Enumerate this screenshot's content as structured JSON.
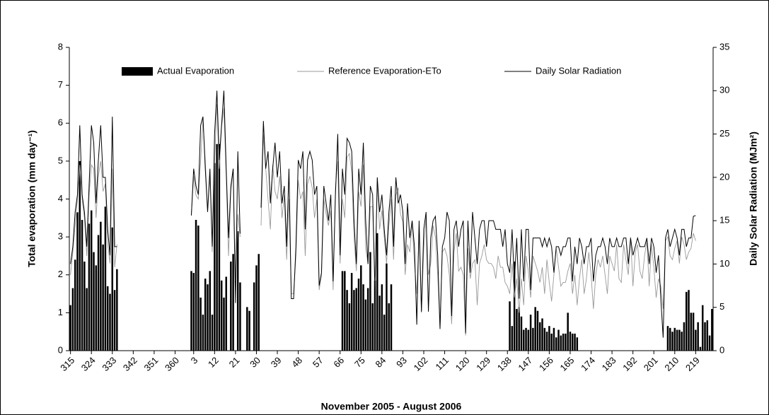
{
  "chart_data": {
    "type": "bar",
    "x_label": "November 2005 - August 2006",
    "y_label": "Total evaporation (mm day⁻¹)",
    "y2_label": "Daily Solar Radiation (MJm²)",
    "legend": "top",
    "categories": [
      "315",
      null,
      null,
      null,
      null,
      null,
      null,
      null,
      null,
      "324",
      null,
      null,
      null,
      null,
      null,
      null,
      null,
      null,
      "333",
      null,
      null,
      null,
      null,
      null,
      null,
      null,
      null,
      "342",
      null,
      null,
      null,
      null,
      null,
      null,
      null,
      null,
      "351",
      null,
      null,
      null,
      null,
      null,
      null,
      null,
      null,
      "360",
      null,
      null,
      null,
      null,
      null,
      null,
      null,
      "3",
      null,
      null,
      null,
      null,
      null,
      null,
      null,
      null,
      "12",
      null,
      null,
      null,
      null,
      null,
      null,
      null,
      null,
      "21",
      null,
      null,
      null,
      null,
      null,
      null,
      null,
      null,
      "30",
      null,
      null,
      null,
      null,
      null,
      null,
      null,
      null,
      "39",
      null,
      null,
      null,
      null,
      null,
      null,
      null,
      null,
      "48",
      null,
      null,
      null,
      null,
      null,
      null,
      null,
      null,
      "57",
      null,
      null,
      null,
      null,
      null,
      null,
      null,
      null,
      "66",
      null,
      null,
      null,
      null,
      null,
      null,
      null,
      null,
      "75",
      null,
      null,
      null,
      null,
      null,
      null,
      null,
      null,
      "84",
      null,
      null,
      null,
      null,
      null,
      null,
      null,
      null,
      "93",
      null,
      null,
      null,
      null,
      null,
      null,
      null,
      null,
      "102",
      null,
      null,
      null,
      null,
      null,
      null,
      null,
      null,
      "111",
      null,
      null,
      null,
      null,
      null,
      null,
      null,
      null,
      "120",
      null,
      null,
      null,
      null,
      null,
      null,
      null,
      null,
      "129",
      null,
      null,
      null,
      null,
      null,
      null,
      null,
      null,
      "138",
      null,
      null,
      null,
      null,
      null,
      null,
      null,
      null,
      "147",
      null,
      null,
      null,
      null,
      null,
      null,
      null,
      null,
      "156",
      null,
      null,
      null,
      null,
      null,
      null,
      null,
      null,
      "165",
      null,
      null,
      null,
      null,
      null,
      null,
      null,
      null,
      "174",
      null,
      null,
      null,
      null,
      null,
      null,
      null,
      null,
      "183",
      null,
      null,
      null,
      null,
      null,
      null,
      null,
      null,
      "192",
      null,
      null,
      null,
      null,
      null,
      null,
      null,
      null,
      "201",
      null,
      null,
      null,
      null,
      null,
      null,
      null,
      null,
      "210",
      null,
      null,
      null,
      null,
      null,
      null,
      null,
      null,
      "219",
      null,
      null,
      null,
      null,
      null,
      null,
      null
    ],
    "series": [
      {
        "name": "Actual Evaporation",
        "type": "bar",
        "color": "#000000",
        "values": [
          1.2,
          1.65,
          2.4,
          3.65,
          5.0,
          3.45,
          2.35,
          1.65,
          3.35,
          3.7,
          2.6,
          2.25,
          3.05,
          3.4,
          2.8,
          3.8,
          1.7,
          1.5,
          3.25,
          1.6,
          2.15,
          null,
          null,
          null,
          null,
          null,
          null,
          null,
          null,
          null,
          null,
          null,
          null,
          null,
          null,
          null,
          null,
          null,
          null,
          null,
          null,
          null,
          null,
          null,
          null,
          null,
          null,
          null,
          null,
          null,
          null,
          null,
          2.1,
          2.05,
          3.45,
          3.3,
          1.4,
          0.95,
          1.9,
          1.75,
          2.1,
          0.95,
          4.95,
          5.45,
          5.45,
          1.85,
          1.4,
          1.95,
          null,
          2.35,
          2.55,
          null,
          3.15,
          1.8,
          null,
          null,
          1.15,
          1.05,
          null,
          1.8,
          2.25,
          2.55,
          null,
          null,
          null,
          null,
          null,
          null,
          null,
          null,
          null,
          null,
          null,
          null,
          null,
          null,
          null,
          null,
          null,
          null,
          null,
          null,
          null,
          null,
          null,
          null,
          null,
          null,
          null,
          null,
          null,
          null,
          null,
          null,
          null,
          null,
          null,
          2.1,
          2.1,
          1.6,
          1.25,
          2.05,
          1.6,
          1.65,
          1.9,
          2.25,
          1.75,
          1.35,
          1.65,
          2.6,
          1.25,
          1.85,
          3.1,
          1.45,
          1.75,
          0.95,
          2.3,
          1.25,
          1.75,
          null,
          null,
          null,
          null,
          null,
          null,
          null,
          null,
          null,
          null,
          null,
          null,
          null,
          null,
          null,
          null,
          null,
          null,
          null,
          null,
          null,
          null,
          null,
          null,
          null,
          null,
          null,
          null,
          null,
          null,
          null,
          null,
          null,
          null,
          null,
          null,
          null,
          null,
          null,
          null,
          null,
          null,
          null,
          null,
          null,
          null,
          null,
          null,
          null,
          null,
          1.3,
          0.65,
          2.35,
          1.1,
          1.15,
          0.9,
          0.55,
          0.6,
          0.55,
          0.95,
          0.6,
          1.15,
          1.05,
          0.75,
          0.85,
          0.6,
          0.5,
          0.65,
          0.45,
          0.6,
          0.35,
          0.55,
          0.4,
          0.45,
          0.45,
          1.0,
          0.5,
          0.45,
          0.45,
          0.35,
          null,
          null,
          null,
          null,
          null,
          null,
          null,
          null,
          null,
          null,
          null,
          null,
          null,
          null,
          null,
          null,
          null,
          null,
          null,
          null,
          null,
          null,
          null,
          null,
          null,
          null,
          null,
          null,
          null,
          null,
          null,
          null,
          null,
          null,
          null,
          null,
          null,
          null,
          0.65,
          0.6,
          0.5,
          0.6,
          0.55,
          0.55,
          0.5,
          0.75,
          1.55,
          1.6,
          1.0,
          1.0,
          0.55,
          0.75,
          0.1,
          1.2,
          0.75,
          0.8,
          0.4,
          1.1
        ]
      },
      {
        "name": "Reference Evaporation-ETo",
        "type": "line",
        "color": "#999999",
        "values": [
          2.0,
          2.6,
          3.3,
          4.0,
          4.9,
          4.0,
          3.5,
          2.5,
          4.1,
          4.9,
          4.8,
          3.5,
          4.6,
          5.0,
          4.2,
          4.4,
          2.8,
          2.3,
          4.8,
          2.2,
          2.8,
          null,
          null,
          null,
          null,
          null,
          null,
          null,
          null,
          null,
          null,
          null,
          null,
          null,
          null,
          null,
          null,
          null,
          null,
          null,
          null,
          null,
          null,
          null,
          null,
          null,
          null,
          null,
          null,
          null,
          null,
          null,
          3.6,
          4.6,
          4.1,
          4.0,
          5.0,
          6.1,
          5.0,
          3.7,
          4.6,
          2.6,
          5.0,
          6.5,
          4.8,
          5.9,
          6.4,
          4.6,
          2.5,
          4.2,
          4.8,
          1.9,
          3.6,
          3.0,
          null,
          null,
          null,
          null,
          null,
          null,
          null,
          null,
          3.3,
          5.7,
          4.8,
          4.0,
          3.2,
          4.9,
          4.2,
          4.0,
          4.6,
          3.5,
          4.1,
          2.4,
          4.0,
          1.5,
          1.5,
          2.5,
          4.5,
          4.0,
          4.2,
          2.5,
          4.4,
          4.6,
          4.3,
          3.5,
          4.0,
          1.6,
          2.0,
          4.0,
          3.6,
          3.3,
          3.7,
          1.6,
          4.3,
          5.0,
          2.3,
          4.0,
          3.5,
          5.1,
          5.2,
          4.7,
          3.0,
          2.1,
          4.2,
          3.8,
          4.9,
          2.7,
          2.3,
          3.8,
          3.8,
          1.6,
          4.5,
          3.2,
          3.7,
          3.0,
          2.3,
          3.3,
          4.0,
          2.4,
          4.1,
          4.3,
          3.6,
          3.4,
          2.0,
          2.8,
          2.6,
          3.4,
          2.3,
          1.5,
          3.1,
          1.0,
          2.7,
          3.5,
          2.0,
          2.3,
          3.3,
          3.0,
          2.0,
          0.6,
          2.6,
          2.7,
          2.5,
          2.0,
          0.7,
          2.6,
          3.1,
          2.1,
          2.2,
          2.0,
          0.4,
          2.7,
          1.9,
          2.3,
          2.4,
          1.2,
          2.3,
          2.5,
          2.8,
          2.4,
          2.3,
          2.3,
          2.2,
          1.9,
          2.5,
          2.2,
          2.2,
          1.8,
          1.7,
          1.5,
          2.3,
          1.4,
          1.9,
          1.0,
          1.9,
          1.2,
          2.5,
          2.1,
          1.4,
          2.5,
          2.3,
          2.1,
          1.8,
          2.2,
          1.5,
          2.4,
          1.8,
          1.3,
          2.0,
          2.7,
          2.2,
          1.7,
          1.8,
          1.8,
          2.1,
          2.3,
          1.5,
          2.0,
          1.2,
          1.9,
          2.4,
          1.5,
          1.9,
          2.6,
          2.0,
          1.1,
          2.0,
          2.4,
          2.2,
          2.5,
          2.0,
          1.5,
          2.5,
          2.3,
          2.1,
          2.8,
          1.9,
          1.8,
          2.8,
          2.4,
          2.0,
          3.0,
          1.7,
          2.6,
          2.8,
          2.1,
          1.9,
          2.5,
          2.9,
          1.7,
          2.8,
          2.2,
          1.4,
          1.9,
          1.7,
          1.1,
          2.9,
          3.0,
          2.5,
          2.4,
          2.7,
          2.9,
          2.3,
          3.0,
          2.8,
          2.4,
          2.6,
          2.7,
          3.1,
          2.9,
          null,
          null,
          null,
          null,
          null,
          null,
          null
        ]
      },
      {
        "name": "Daily Solar Radiation",
        "type": "line",
        "axis": "y2",
        "color": "#000000",
        "values": [
          10,
          12,
          16,
          18,
          26,
          18,
          16,
          12,
          19,
          26,
          24,
          17,
          22,
          26,
          20,
          20,
          14,
          11,
          27,
          12,
          12,
          null,
          null,
          null,
          null,
          null,
          null,
          null,
          null,
          null,
          null,
          null,
          null,
          null,
          null,
          null,
          null,
          null,
          null,
          null,
          null,
          null,
          null,
          null,
          null,
          null,
          null,
          null,
          null,
          null,
          null,
          null,
          15.6,
          21,
          19,
          18,
          26,
          27,
          21,
          16,
          21,
          12,
          25,
          30,
          22,
          26,
          30,
          21,
          13,
          19,
          21,
          5.5,
          23,
          13.5,
          null,
          null,
          null,
          null,
          null,
          null,
          null,
          null,
          16.5,
          26.5,
          21,
          23,
          17,
          21,
          24,
          20,
          23,
          17,
          19,
          12,
          21,
          6,
          6,
          12,
          22,
          21,
          23,
          14,
          22,
          23,
          22,
          18,
          19,
          7.5,
          9,
          19,
          17,
          15,
          18,
          8,
          18,
          25,
          11,
          21,
          18,
          24.5,
          24,
          23,
          15,
          10,
          21,
          18,
          24,
          15,
          10,
          19,
          18,
          7,
          20,
          16,
          18,
          14,
          11,
          16,
          19,
          12,
          20,
          17,
          18,
          16,
          10,
          17,
          13,
          15,
          12,
          3,
          15,
          4.5,
          14,
          16,
          4.5,
          13,
          15,
          15.5,
          11,
          2.5,
          12,
          13,
          16,
          15,
          4,
          14,
          15,
          12,
          14,
          15,
          2,
          15,
          9,
          16,
          13,
          10,
          14,
          15,
          15,
          12,
          15,
          15,
          15,
          14,
          14,
          14,
          12,
          14,
          10,
          9,
          14,
          8,
          13,
          6,
          14,
          8,
          14,
          14,
          7,
          13,
          13,
          13,
          13,
          12,
          13,
          12,
          13,
          12,
          9,
          12,
          12,
          11,
          12,
          12,
          13,
          13,
          8,
          12,
          10,
          13,
          12,
          10,
          12,
          12,
          13,
          8,
          11,
          12,
          12,
          13,
          12,
          10,
          13,
          12,
          12,
          13,
          12,
          12,
          13,
          13,
          10,
          13,
          11,
          12,
          13,
          12,
          12,
          12,
          13,
          10,
          13,
          12,
          9,
          11,
          6,
          1.5,
          13,
          14,
          12,
          13,
          14,
          13,
          11,
          14,
          14,
          12,
          13,
          13,
          15.5,
          15.6,
          null,
          null,
          null,
          null,
          null,
          null,
          null
        ]
      }
    ],
    "ylim": [
      0,
      8
    ],
    "yticks": [
      0,
      1,
      2,
      3,
      4,
      5,
      6,
      7,
      8
    ],
    "y2lim": [
      0,
      35
    ],
    "y2ticks": [
      0,
      5,
      10,
      15,
      20,
      25,
      30,
      35
    ],
    "grid": false
  }
}
